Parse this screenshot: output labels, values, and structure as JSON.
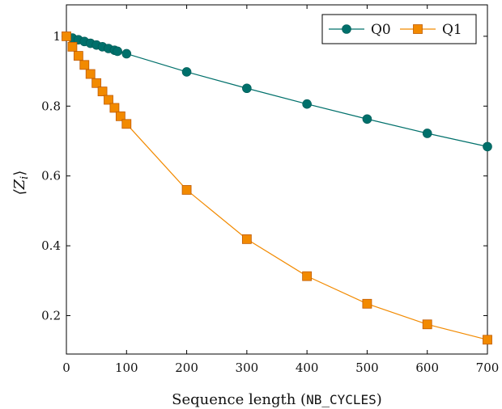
{
  "chart_data": {
    "type": "line",
    "xlabel_prefix": "Sequence length (",
    "xlabel_code": "NB_CYCLES",
    "xlabel_suffix": ")",
    "ylabel_base": "⟨Z",
    "ylabel_sub": "i",
    "ylabel_close": "⟩",
    "xlim": [
      0,
      700
    ],
    "ylim": [
      0.09,
      1.09
    ],
    "xticks": [
      0,
      100,
      200,
      300,
      400,
      500,
      600,
      700
    ],
    "yticks": [
      0.2,
      0.4,
      0.6,
      0.8,
      1
    ],
    "ytick_labels": [
      "0.2",
      "0.4",
      "0.6",
      "0.8",
      "1"
    ],
    "grid": false,
    "legend_position": "top-right",
    "series": [
      {
        "name": "Q0",
        "color": "#00706b",
        "marker": "circle",
        "x": [
          0,
          10,
          20,
          30,
          40,
          50,
          60,
          70,
          80,
          85,
          100,
          200,
          300,
          400,
          500,
          600,
          700
        ],
        "y": [
          1.0,
          0.995,
          0.99,
          0.985,
          0.98,
          0.975,
          0.97,
          0.965,
          0.96,
          0.957,
          0.95,
          0.898,
          0.851,
          0.806,
          0.763,
          0.722,
          0.684
        ]
      },
      {
        "name": "Q1",
        "color": "#f28a00",
        "marker": "square",
        "x": [
          0,
          10,
          20,
          30,
          40,
          50,
          60,
          70,
          80,
          90,
          100,
          200,
          300,
          400,
          500,
          600,
          700
        ],
        "y": [
          1.0,
          0.97,
          0.944,
          0.918,
          0.892,
          0.866,
          0.842,
          0.818,
          0.795,
          0.771,
          0.749,
          0.56,
          0.419,
          0.313,
          0.234,
          0.175,
          0.131
        ]
      }
    ]
  }
}
